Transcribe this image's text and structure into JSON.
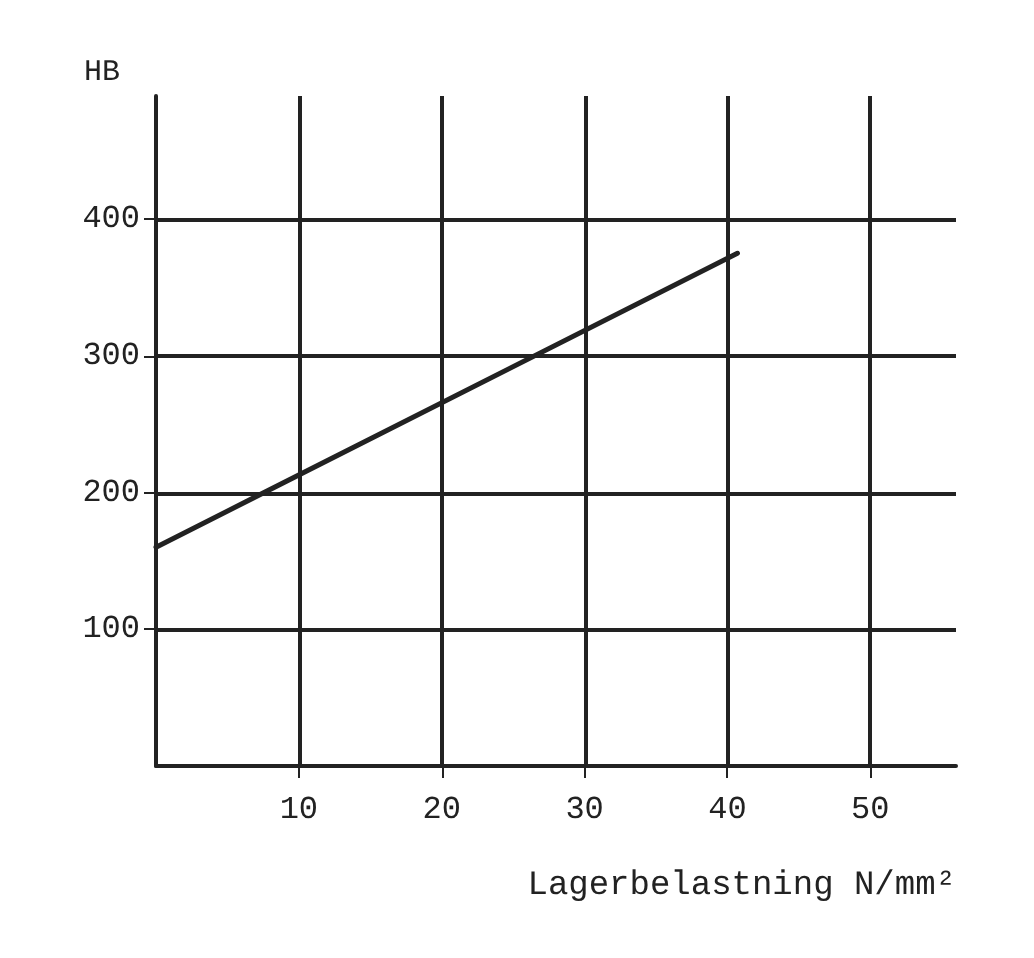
{
  "chart_data": {
    "type": "line",
    "xlabel": "Lagerbelastning N/mm²",
    "ylabel": "HB",
    "x": [
      0,
      40.7
    ],
    "series": [
      {
        "color": "#222222",
        "values": [
          160,
          375
        ]
      }
    ],
    "xlim": [
      0,
      56
    ],
    "ylim": [
      0,
      490
    ],
    "xticks": [
      10,
      20,
      30,
      40,
      50
    ],
    "yticks": [
      100,
      200,
      300,
      400
    ],
    "grid": true,
    "marker": "none",
    "line_style": "solid"
  }
}
